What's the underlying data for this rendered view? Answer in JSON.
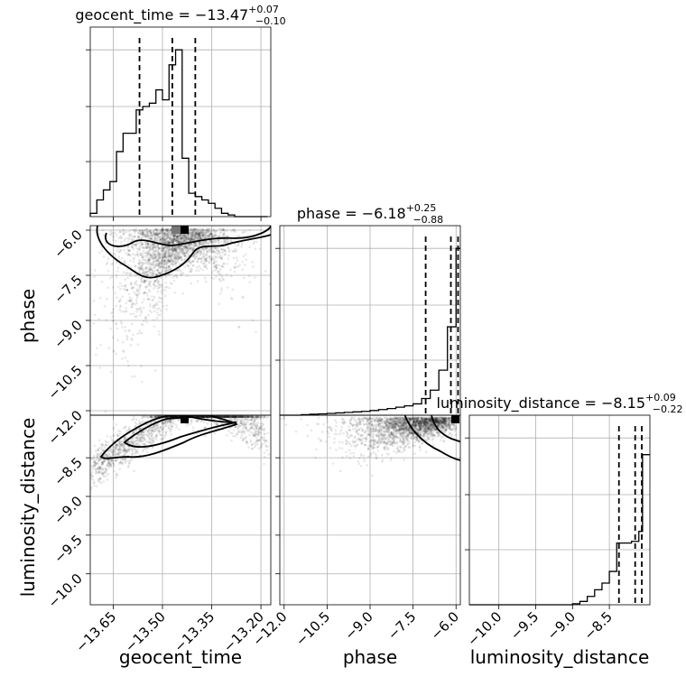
{
  "chart_data": {
    "type": "corner",
    "parameters": [
      "geocent_time",
      "phase",
      "luminosity_distance"
    ],
    "ranges": {
      "geocent_time": [
        -13.72,
        -13.17
      ],
      "phase": [
        -12.15,
        -5.85
      ],
      "luminosity_distance": [
        -10.4,
        -7.95
      ]
    },
    "ticks": {
      "geocent_time": [
        -13.65,
        -13.5,
        -13.35,
        -13.2
      ],
      "geocent_time_labels": [
        "−13.65",
        "−13.50",
        "−13.35",
        "−13.20"
      ],
      "phase": [
        -12.0,
        -10.5,
        -9.0,
        -7.5,
        -6.0
      ],
      "phase_labels": [
        "−12.0",
        "−10.5",
        "−9.0",
        "−7.5",
        "−6.0"
      ],
      "luminosity_distance": [
        -10.0,
        -9.5,
        -9.0,
        -8.5
      ],
      "luminosity_distance_labels": [
        "−10.0",
        "−9.5",
        "−9.0",
        "−8.5"
      ]
    },
    "titles": [
      {
        "param": "geocent_time",
        "text": "geocent_time = −13.47",
        "sup": "+0.07",
        "sub": "−0.10"
      },
      {
        "param": "phase",
        "text": "phase = −6.18",
        "sup": "+0.25",
        "sub": "−0.88"
      },
      {
        "param": "luminosity_distance",
        "text": "luminosity_distance = −8.15",
        "sup": "+0.09",
        "sub": "−0.22"
      }
    ],
    "quantiles": {
      "geocent_time": [
        -13.57,
        -13.47,
        -13.4
      ],
      "phase": [
        -7.06,
        -6.18,
        -5.93
      ],
      "luminosity_distance": [
        -8.37,
        -8.15,
        -8.06
      ]
    },
    "histograms": {
      "geocent_time": {
        "edges": [
          -13.72,
          -13.7,
          -13.68,
          -13.66,
          -13.64,
          -13.62,
          -13.6,
          -13.58,
          -13.56,
          -13.54,
          -13.52,
          -13.5,
          -13.48,
          -13.46,
          -13.44,
          -13.42,
          -13.4,
          -13.38,
          -13.36,
          -13.34,
          -13.32,
          -13.3,
          -13.28,
          -13.26,
          -13.24,
          -13.22,
          -13.2,
          -13.18
        ],
        "counts": [
          0.02,
          0.1,
          0.16,
          0.21,
          0.39,
          0.5,
          0.5,
          0.64,
          0.66,
          0.68,
          0.76,
          0.7,
          0.91,
          1.0,
          0.35,
          0.14,
          0.12,
          0.1,
          0.08,
          0.05,
          0.02,
          0.01,
          0.0,
          0.0,
          0.0,
          0.0,
          0.0
        ]
      },
      "phase": {
        "edges": [
          -12.15,
          -11.4,
          -11.1,
          -10.8,
          -10.5,
          -10.2,
          -9.9,
          -9.6,
          -9.3,
          -9.0,
          -8.7,
          -8.4,
          -8.1,
          -7.8,
          -7.5,
          -7.2,
          -6.9,
          -6.6,
          -6.3,
          -6.0,
          -5.85
        ],
        "counts": [
          0.0,
          0.003,
          0.006,
          0.008,
          0.011,
          0.014,
          0.017,
          0.02,
          0.023,
          0.028,
          0.034,
          0.04,
          0.048,
          0.056,
          0.068,
          0.1,
          0.15,
          0.27,
          0.53,
          1.0
        ]
      },
      "luminosity_distance": {
        "edges": [
          -10.4,
          -9.0,
          -8.9,
          -8.8,
          -8.7,
          -8.6,
          -8.5,
          -8.4,
          -8.3,
          -8.2,
          -8.1,
          -8.05,
          -7.95
        ],
        "counts": [
          0.0,
          0.006,
          0.02,
          0.05,
          0.09,
          0.13,
          0.2,
          0.37,
          0.37,
          0.38,
          0.44,
          0.9
        ]
      }
    },
    "contours_2d": [
      {
        "x": "geocent_time",
        "y": "phase",
        "levels": 2
      },
      {
        "x": "geocent_time",
        "y": "luminosity_distance",
        "levels": 2
      },
      {
        "x": "phase",
        "y": "luminosity_distance",
        "levels": 2
      }
    ],
    "grid": true
  }
}
